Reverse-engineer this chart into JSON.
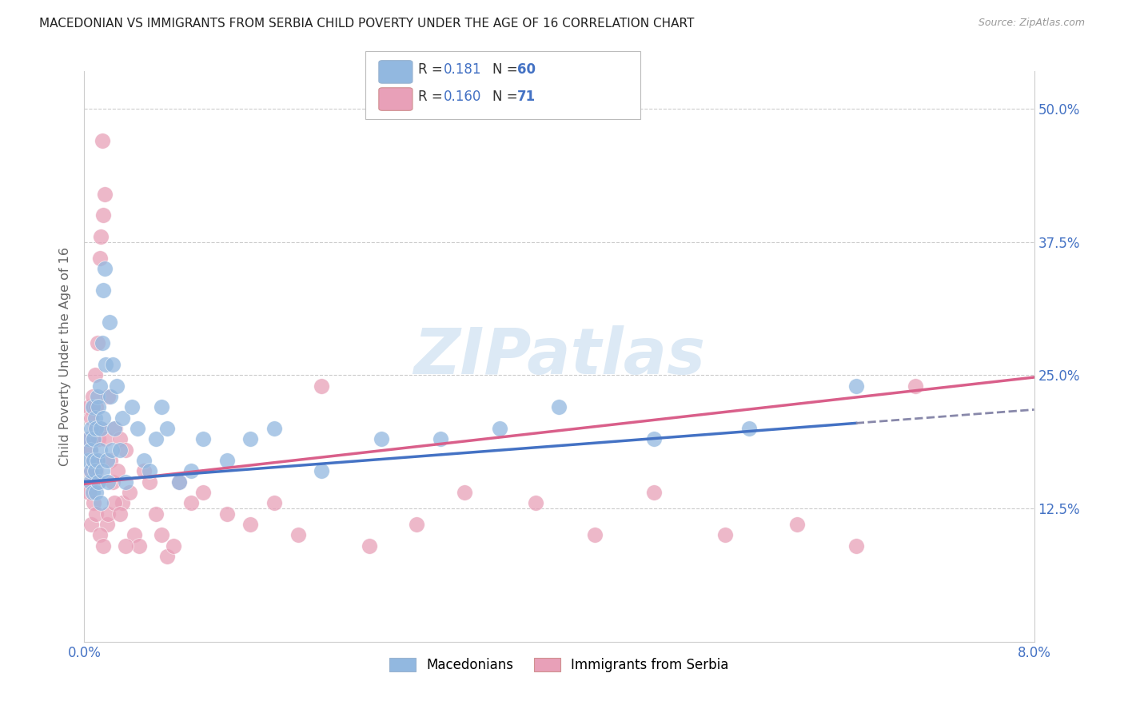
{
  "title": "MACEDONIAN VS IMMIGRANTS FROM SERBIA CHILD POVERTY UNDER THE AGE OF 16 CORRELATION CHART",
  "source": "Source: ZipAtlas.com",
  "ylabel": "Child Poverty Under the Age of 16",
  "legend_label1": "Macedonians",
  "legend_label2": "Immigrants from Serbia",
  "r1": "0.181",
  "n1": "60",
  "r2": "0.160",
  "n2": "71",
  "ytick_values": [
    0.125,
    0.25,
    0.375,
    0.5
  ],
  "ytick_labels": [
    "12.5%",
    "25.0%",
    "37.5%",
    "50.0%"
  ],
  "xmin": 0.0,
  "xmax": 0.08,
  "ymin": 0.0,
  "ymax": 0.535,
  "blue_fill": "#92b8e0",
  "pink_fill": "#e8a0b8",
  "blue_line": "#4472c4",
  "pink_line": "#d95f8a",
  "grid_color": "#cccccc",
  "watermark_color": "#dce9f5",
  "bg_color": "#ffffff",
  "title_color": "#222222",
  "source_color": "#999999",
  "axis_label_color": "#4472c4",
  "ylabel_color": "#666666",
  "blue_x": [
    0.0003,
    0.0004,
    0.0005,
    0.0005,
    0.0006,
    0.0006,
    0.0007,
    0.0007,
    0.0008,
    0.0008,
    0.0009,
    0.0009,
    0.001,
    0.001,
    0.0011,
    0.0011,
    0.0012,
    0.0012,
    0.0013,
    0.0013,
    0.0014,
    0.0014,
    0.0015,
    0.0015,
    0.0016,
    0.0016,
    0.0017,
    0.0018,
    0.0019,
    0.002,
    0.0021,
    0.0022,
    0.0023,
    0.0024,
    0.0025,
    0.0027,
    0.003,
    0.0032,
    0.0035,
    0.004,
    0.0045,
    0.005,
    0.0055,
    0.006,
    0.0065,
    0.007,
    0.008,
    0.009,
    0.01,
    0.012,
    0.014,
    0.016,
    0.02,
    0.025,
    0.03,
    0.035,
    0.04,
    0.048,
    0.056,
    0.065
  ],
  "blue_y": [
    0.17,
    0.19,
    0.18,
    0.15,
    0.2,
    0.16,
    0.22,
    0.14,
    0.19,
    0.17,
    0.21,
    0.16,
    0.2,
    0.14,
    0.23,
    0.17,
    0.22,
    0.15,
    0.24,
    0.18,
    0.2,
    0.13,
    0.28,
    0.16,
    0.33,
    0.21,
    0.35,
    0.26,
    0.17,
    0.15,
    0.3,
    0.23,
    0.18,
    0.26,
    0.2,
    0.24,
    0.18,
    0.21,
    0.15,
    0.22,
    0.2,
    0.17,
    0.16,
    0.19,
    0.22,
    0.2,
    0.15,
    0.16,
    0.19,
    0.17,
    0.19,
    0.2,
    0.16,
    0.19,
    0.19,
    0.2,
    0.22,
    0.19,
    0.2,
    0.24
  ],
  "pink_x": [
    0.0003,
    0.0004,
    0.0005,
    0.0005,
    0.0006,
    0.0006,
    0.0007,
    0.0007,
    0.0008,
    0.0008,
    0.0009,
    0.0009,
    0.001,
    0.001,
    0.0011,
    0.0011,
    0.0012,
    0.0012,
    0.0013,
    0.0013,
    0.0014,
    0.0015,
    0.0016,
    0.0017,
    0.0018,
    0.0019,
    0.002,
    0.0022,
    0.0024,
    0.0026,
    0.0028,
    0.003,
    0.0032,
    0.0035,
    0.0038,
    0.0042,
    0.0046,
    0.005,
    0.0055,
    0.006,
    0.0065,
    0.007,
    0.0075,
    0.008,
    0.009,
    0.01,
    0.012,
    0.014,
    0.016,
    0.018,
    0.02,
    0.024,
    0.028,
    0.032,
    0.038,
    0.043,
    0.048,
    0.054,
    0.06,
    0.065,
    0.07,
    0.0004,
    0.0006,
    0.0008,
    0.001,
    0.0013,
    0.0016,
    0.002,
    0.0025,
    0.003,
    0.0035
  ],
  "pink_y": [
    0.19,
    0.22,
    0.18,
    0.16,
    0.21,
    0.15,
    0.23,
    0.17,
    0.22,
    0.19,
    0.25,
    0.2,
    0.16,
    0.22,
    0.28,
    0.17,
    0.19,
    0.15,
    0.36,
    0.2,
    0.38,
    0.47,
    0.4,
    0.42,
    0.19,
    0.11,
    0.23,
    0.17,
    0.15,
    0.2,
    0.16,
    0.19,
    0.13,
    0.18,
    0.14,
    0.1,
    0.09,
    0.16,
    0.15,
    0.12,
    0.1,
    0.08,
    0.09,
    0.15,
    0.13,
    0.14,
    0.12,
    0.11,
    0.13,
    0.1,
    0.24,
    0.09,
    0.11,
    0.14,
    0.13,
    0.1,
    0.14,
    0.1,
    0.11,
    0.09,
    0.24,
    0.14,
    0.11,
    0.13,
    0.12,
    0.1,
    0.09,
    0.12,
    0.13,
    0.12,
    0.09
  ]
}
